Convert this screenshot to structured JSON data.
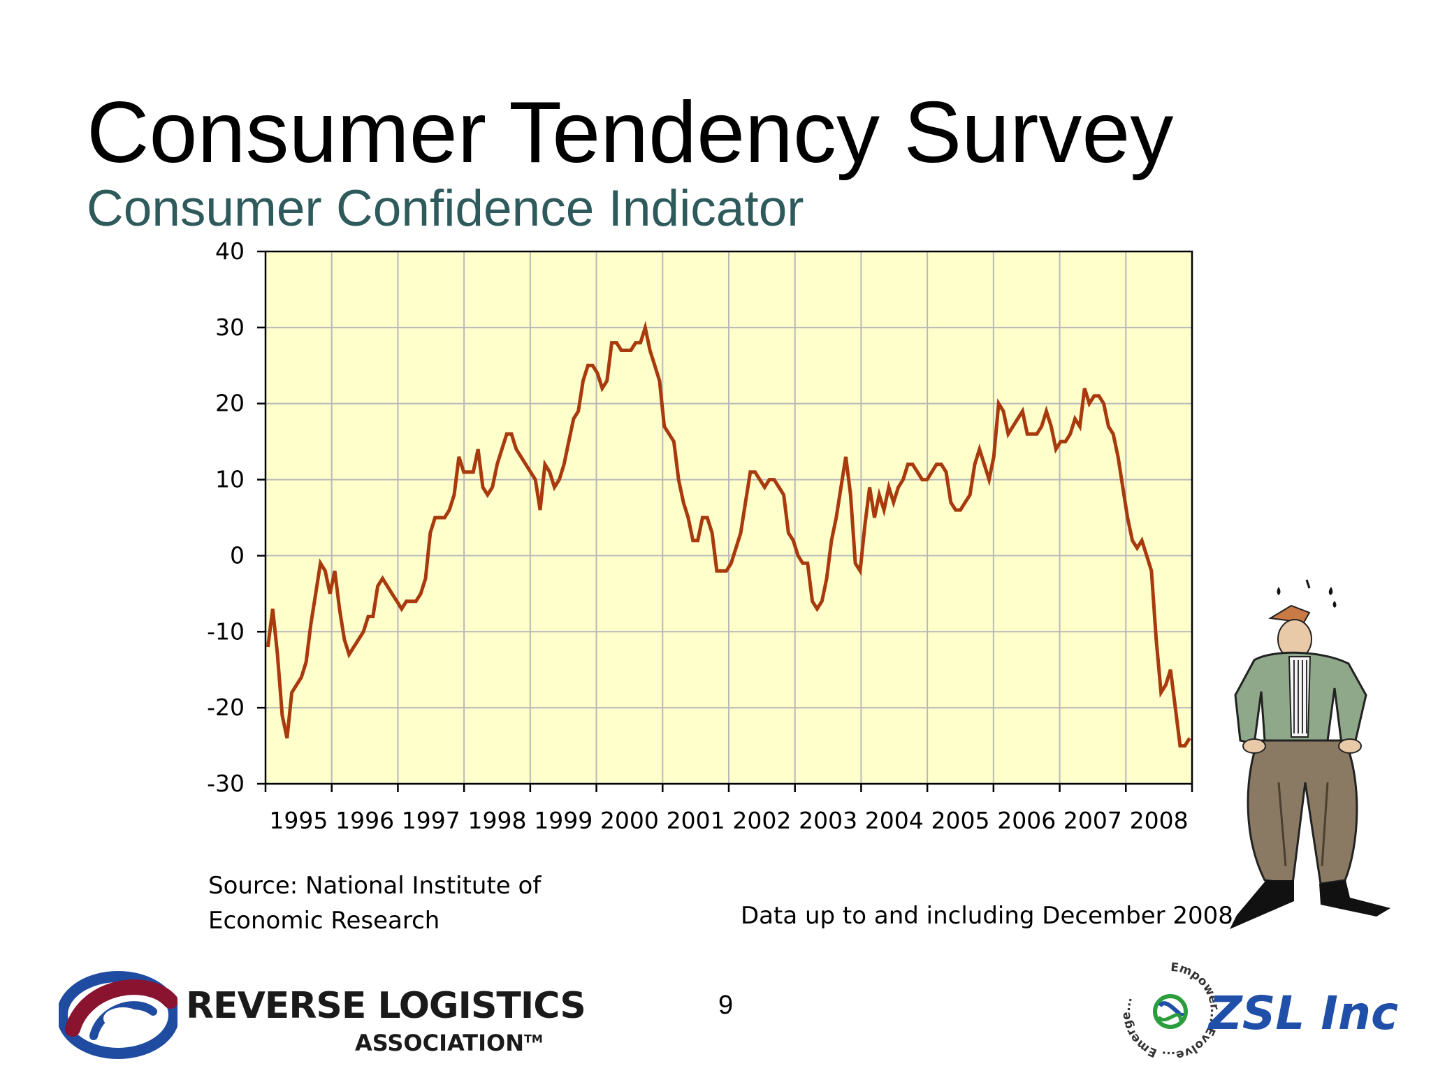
{
  "slide": {
    "title": "Consumer Tendency Survey",
    "subtitle": "Consumer Confidence Indicator",
    "source_line1": "Source: National Institute of",
    "source_line2": "Economic Research",
    "data_note": "Data up to and including December 2008",
    "page_number": "9"
  },
  "logos": {
    "rla_line1": "REVERSE LOGISTICS",
    "rla_line2": "ASSOCIATION",
    "rla_tm": "TM",
    "zsl_name": "ZSL Inc",
    "zsl_ring_text": "Empower... Evolve... Emerge..."
  },
  "colors": {
    "line": "#a83a0e",
    "plot_background": "#ffffcc",
    "grid": "#b8b8b8",
    "subtitle": "#2e5a5c"
  },
  "illustration": "worried-man-with-empty-pockets",
  "chart_data": {
    "type": "line",
    "title": "",
    "xlabel": "",
    "ylabel": "",
    "ylim": [
      -30,
      40
    ],
    "yticks": [
      40,
      30,
      20,
      10,
      0,
      -10,
      -20,
      -30
    ],
    "xticks": [
      "1995",
      "1996",
      "1997",
      "1998",
      "1999",
      "2000",
      "2001",
      "2002",
      "2003",
      "2004",
      "2005",
      "2006",
      "2007",
      "2008"
    ],
    "grid": true,
    "series": [
      {
        "values": [
          -12,
          -7,
          -13,
          -21,
          -24,
          -18,
          -17,
          -16,
          -14,
          -9,
          -5,
          -1,
          -2,
          -5,
          -2,
          -7,
          -11,
          -13,
          -12,
          -11,
          -10,
          -8,
          -8,
          -4,
          -3,
          -4,
          -5,
          -6,
          -7,
          -6,
          -6,
          -6,
          -5,
          -3,
          3,
          5,
          5,
          5,
          6,
          8,
          13,
          11,
          11,
          11,
          14,
          9,
          8,
          9,
          12,
          14,
          16,
          16,
          14,
          13,
          12,
          11,
          10,
          6,
          12,
          11,
          9,
          10,
          12,
          15,
          18,
          19,
          23,
          25,
          25,
          24,
          22,
          23,
          28,
          28,
          27,
          27,
          27,
          28,
          28,
          30,
          27,
          25,
          23,
          17,
          16,
          15,
          10,
          7,
          5,
          2,
          2,
          5,
          5,
          3,
          -2,
          -2,
          -2,
          -1,
          1,
          3,
          7,
          11,
          11,
          10,
          9,
          10,
          10,
          9,
          8,
          3,
          2,
          0,
          -1,
          -1,
          -6,
          -7,
          -6,
          -3,
          2,
          5,
          9,
          13,
          8,
          -1,
          -2,
          4,
          9,
          5,
          8,
          6,
          9,
          7,
          9,
          10,
          12,
          12,
          11,
          10,
          10,
          11,
          12,
          12,
          11,
          7,
          6,
          6,
          7,
          8,
          12,
          14,
          12,
          10,
          13,
          20,
          19,
          16,
          17,
          18,
          19,
          16,
          16,
          16,
          17,
          19,
          17,
          14,
          15,
          15,
          16,
          18,
          17,
          22,
          20,
          21,
          21,
          20,
          17,
          16,
          13,
          9,
          5,
          2,
          1,
          2,
          0,
          -2,
          -11,
          -18,
          -17,
          -15,
          -20,
          -25,
          -25,
          -24
        ]
      }
    ]
  }
}
